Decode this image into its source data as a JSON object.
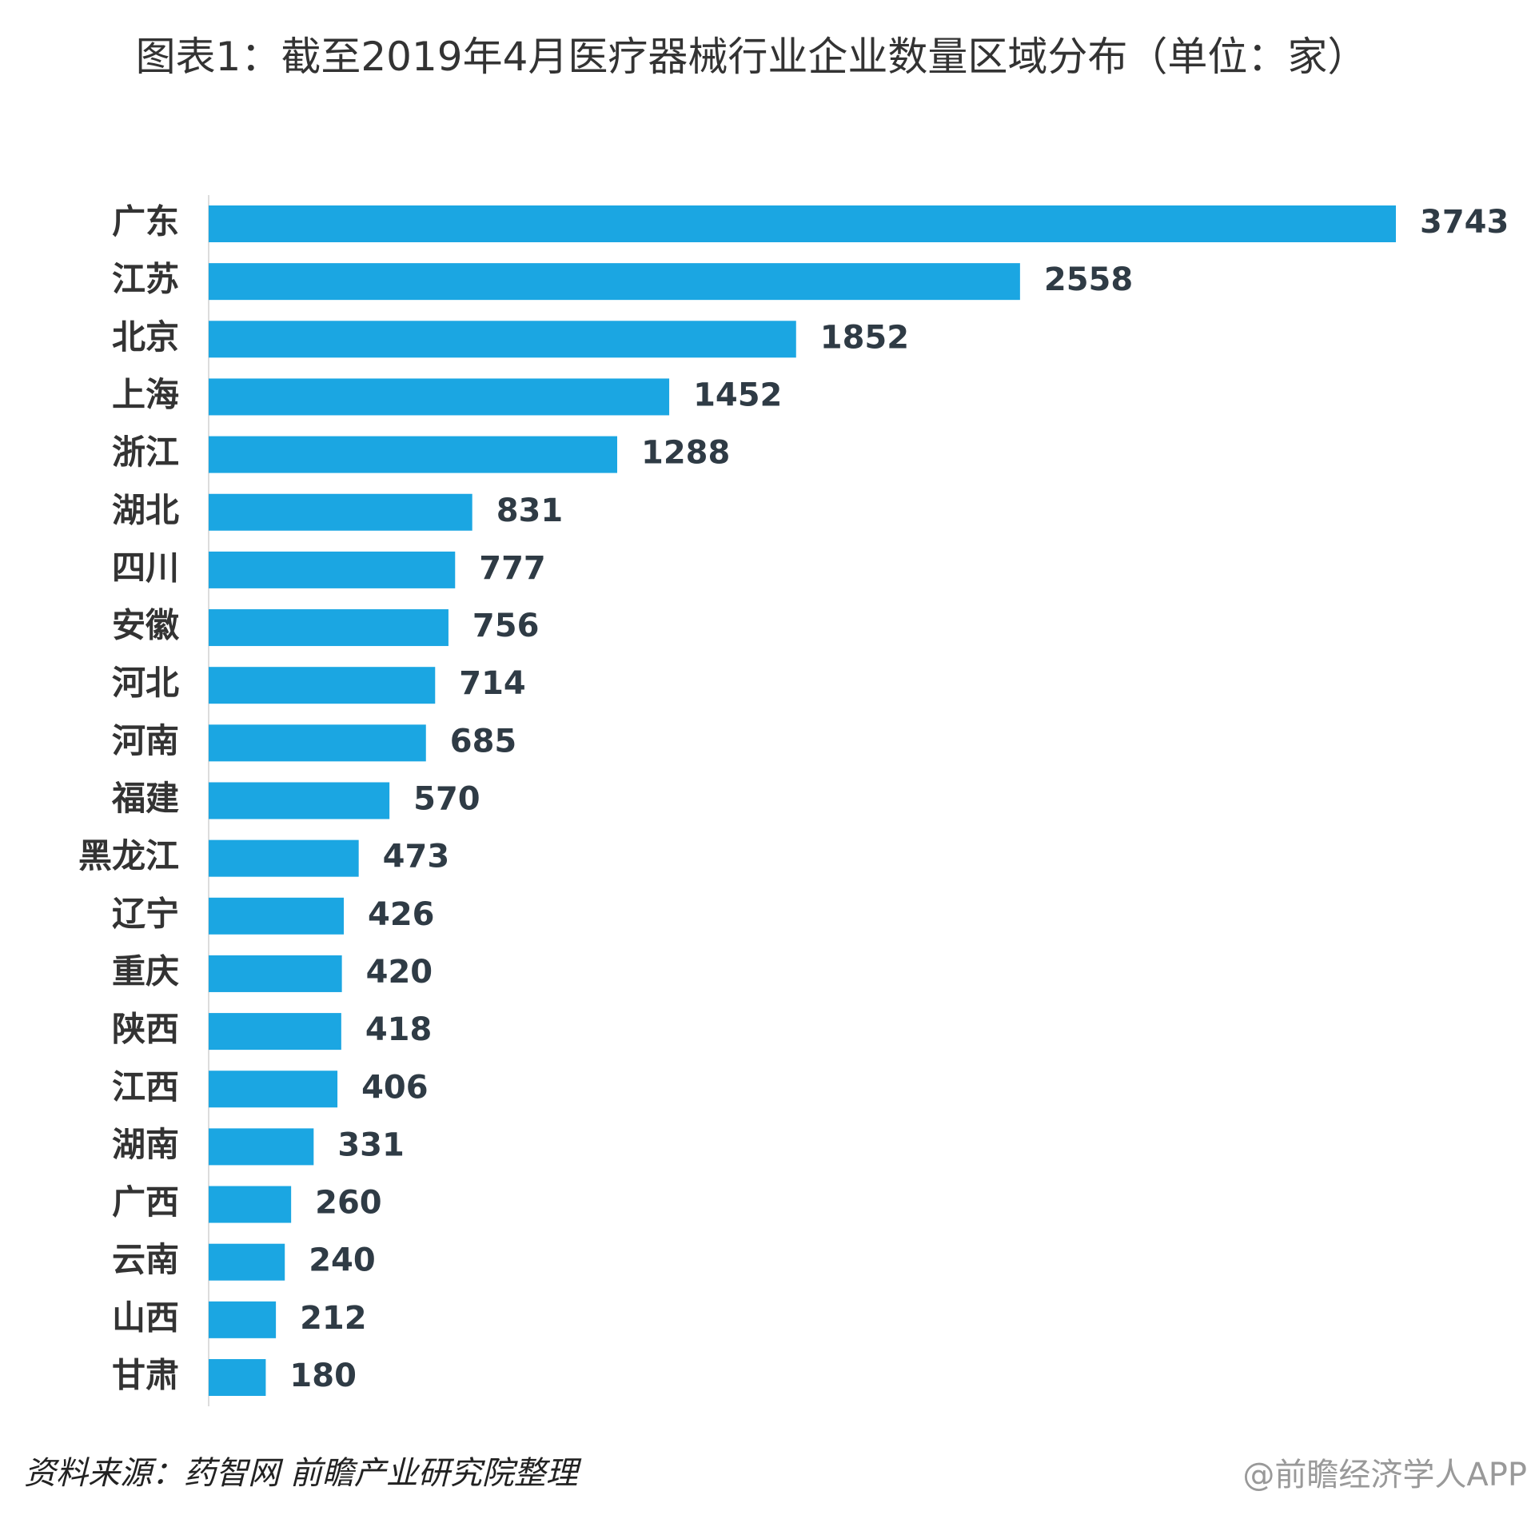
{
  "chart_data": {
    "type": "bar",
    "orientation": "horizontal",
    "title": "图表1：截至2019年4月医疗器械行业企业数量区域分布（单位：家）",
    "categories": [
      "广东",
      "江苏",
      "北京",
      "上海",
      "浙江",
      "湖北",
      "四川",
      "安徽",
      "河北",
      "河南",
      "福建",
      "黑龙江",
      "辽宁",
      "重庆",
      "陕西",
      "江西",
      "湖南",
      "广西",
      "云南",
      "山西",
      "甘肃"
    ],
    "values": [
      3743,
      2558,
      1852,
      1452,
      1288,
      831,
      777,
      756,
      714,
      685,
      570,
      473,
      426,
      420,
      418,
      406,
      331,
      260,
      240,
      212,
      180
    ],
    "color": "#1ba6e2",
    "source": "资料来源：药智网 前瞻产业研究院整理",
    "watermark": "@前瞻经济学人APP"
  }
}
